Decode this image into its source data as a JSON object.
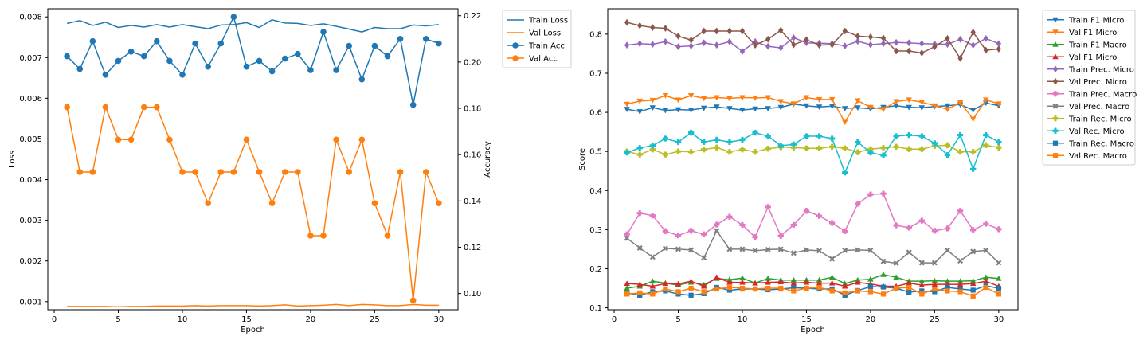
{
  "chart_data": [
    {
      "type": "line",
      "xlabel": "Epoch",
      "ylabel_left": "Loss",
      "ylabel_right": "Accuracy",
      "xlim": [
        -0.5,
        31.5
      ],
      "ylim_left": [
        0.0008,
        0.0082
      ],
      "ylim_right": [
        0.093,
        0.223
      ],
      "xticks": [
        0,
        5,
        10,
        15,
        20,
        25,
        30
      ],
      "yticks_left": [
        0.001,
        0.002,
        0.003,
        0.004,
        0.005,
        0.006,
        0.007,
        0.008
      ],
      "yticks_right": [
        0.1,
        0.12,
        0.14,
        0.16,
        0.18,
        0.2,
        0.22
      ],
      "x": [
        1,
        2,
        3,
        4,
        5,
        6,
        7,
        8,
        9,
        10,
        11,
        12,
        13,
        14,
        15,
        16,
        17,
        18,
        19,
        20,
        21,
        22,
        23,
        24,
        25,
        26,
        27,
        28,
        29,
        30
      ],
      "legend_position": "outside-right",
      "grid": false,
      "series": [
        {
          "name": "Train Loss",
          "axis": "left",
          "color": "#1f77b4",
          "marker": "none",
          "values": [
            0.00784,
            0.00791,
            0.00779,
            0.00787,
            0.00774,
            0.00779,
            0.00775,
            0.00781,
            0.00775,
            0.00781,
            0.00776,
            0.00771,
            0.0078,
            0.00781,
            0.00786,
            0.00774,
            0.00793,
            0.00785,
            0.00784,
            0.00779,
            0.00783,
            0.00777,
            0.0077,
            0.00763,
            0.00774,
            0.00771,
            0.00771,
            0.0078,
            0.00778,
            0.00781
          ]
        },
        {
          "name": "Val Loss",
          "axis": "left",
          "color": "#ff7f0e",
          "marker": "none",
          "values": [
            0.00088,
            0.00088,
            0.00088,
            0.00088,
            0.00087,
            0.00088,
            0.00088,
            0.00089,
            0.00089,
            0.00089,
            0.0009,
            0.00089,
            0.0009,
            0.0009,
            0.0009,
            0.00089,
            0.0009,
            0.00092,
            0.00089,
            0.0009,
            0.00091,
            0.00093,
            0.0009,
            0.00093,
            0.00092,
            0.0009,
            0.0009,
            0.00093,
            0.00091,
            0.00091
          ]
        },
        {
          "name": "Train Acc",
          "axis": "right",
          "color": "#1f77b4",
          "marker": "circle",
          "values": [
            0.2025,
            0.197,
            0.209,
            0.1945,
            0.2005,
            0.2045,
            0.2025,
            0.209,
            0.2005,
            0.1945,
            0.208,
            0.198,
            0.208,
            0.2195,
            0.198,
            0.2005,
            0.196,
            0.2015,
            0.2035,
            0.1965,
            0.213,
            0.1965,
            0.207,
            0.1925,
            0.207,
            0.2025,
            0.21,
            0.1815,
            0.21,
            0.208
          ]
        },
        {
          "name": "Val Acc",
          "axis": "right",
          "color": "#ff7f0e",
          "marker": "circle",
          "values": [
            0.1805,
            0.1525,
            0.1525,
            0.1805,
            0.1665,
            0.1665,
            0.1805,
            0.1805,
            0.1665,
            0.1525,
            0.1525,
            0.139,
            0.1525,
            0.1525,
            0.1665,
            0.1525,
            0.139,
            0.1525,
            0.1525,
            0.125,
            0.125,
            0.1665,
            0.1525,
            0.1665,
            0.139,
            0.125,
            0.1525,
            0.097,
            0.1525,
            0.139
          ]
        }
      ]
    },
    {
      "type": "line",
      "xlabel": "Epoch",
      "ylabel": "Score",
      "xlim": [
        -0.5,
        31.5
      ],
      "ylim": [
        0.095,
        0.865
      ],
      "xticks": [
        0,
        5,
        10,
        15,
        20,
        25,
        30
      ],
      "yticks": [
        0.1,
        0.2,
        0.3,
        0.4,
        0.5,
        0.6,
        0.7,
        0.8
      ],
      "x": [
        1,
        2,
        3,
        4,
        5,
        6,
        7,
        8,
        9,
        10,
        11,
        12,
        13,
        14,
        15,
        16,
        17,
        18,
        19,
        20,
        21,
        22,
        23,
        24,
        25,
        26,
        27,
        28,
        29,
        30
      ],
      "legend_position": "outside-right",
      "grid": false,
      "series": [
        {
          "name": "Train F1 Micro",
          "color": "#1f77b4",
          "marker": "tri-down",
          "values": [
            0.608,
            0.602,
            0.612,
            0.605,
            0.607,
            0.606,
            0.611,
            0.614,
            0.61,
            0.606,
            0.609,
            0.61,
            0.613,
            0.621,
            0.617,
            0.614,
            0.616,
            0.61,
            0.612,
            0.609,
            0.613,
            0.617,
            0.613,
            0.612,
            0.615,
            0.617,
            0.62,
            0.606,
            0.624,
            0.617
          ]
        },
        {
          "name": "Val F1 Micro",
          "color": "#ff7f0e",
          "marker": "tri-down",
          "values": [
            0.621,
            0.629,
            0.631,
            0.643,
            0.632,
            0.643,
            0.636,
            0.638,
            0.636,
            0.638,
            0.637,
            0.638,
            0.628,
            0.622,
            0.638,
            0.633,
            0.633,
            0.575,
            0.63,
            0.613,
            0.608,
            0.628,
            0.632,
            0.626,
            0.617,
            0.608,
            0.625,
            0.583,
            0.632,
            0.622
          ]
        },
        {
          "name": "Train F1 Macro",
          "color": "#2ca02c",
          "marker": "tri-up",
          "values": [
            0.15,
            0.155,
            0.168,
            0.163,
            0.158,
            0.165,
            0.159,
            0.175,
            0.172,
            0.176,
            0.163,
            0.175,
            0.171,
            0.171,
            0.171,
            0.171,
            0.178,
            0.162,
            0.171,
            0.173,
            0.185,
            0.178,
            0.168,
            0.168,
            0.169,
            0.168,
            0.168,
            0.169,
            0.178,
            0.175
          ]
        },
        {
          "name": "Val F1 Micro",
          "color": "#d62728",
          "marker": "tri-up",
          "values": [
            0.162,
            0.16,
            0.155,
            0.162,
            0.161,
            0.168,
            0.155,
            0.178,
            0.165,
            0.165,
            0.163,
            0.165,
            0.166,
            0.163,
            0.165,
            0.163,
            0.163,
            0.155,
            0.165,
            0.161,
            0.155,
            0.155,
            0.163,
            0.158,
            0.16,
            0.16,
            0.16,
            0.162,
            0.168,
            0.155
          ]
        },
        {
          "name": "Train Prec. Micro",
          "color": "#9467bd",
          "marker": "diamond",
          "values": [
            0.772,
            0.776,
            0.774,
            0.781,
            0.768,
            0.77,
            0.778,
            0.772,
            0.781,
            0.756,
            0.781,
            0.769,
            0.765,
            0.791,
            0.778,
            0.777,
            0.776,
            0.77,
            0.782,
            0.773,
            0.776,
            0.779,
            0.778,
            0.776,
            0.775,
            0.774,
            0.787,
            0.772,
            0.789,
            0.776
          ]
        },
        {
          "name": "Val Prec. Micro",
          "color": "#8c564b",
          "marker": "diamond",
          "values": [
            0.83,
            0.822,
            0.817,
            0.815,
            0.795,
            0.785,
            0.808,
            0.808,
            0.808,
            0.808,
            0.772,
            0.787,
            0.81,
            0.773,
            0.786,
            0.772,
            0.773,
            0.808,
            0.795,
            0.793,
            0.79,
            0.757,
            0.757,
            0.752,
            0.768,
            0.789,
            0.738,
            0.805,
            0.759,
            0.762
          ]
        },
        {
          "name": "Train Prec. Macro",
          "color": "#e377c2",
          "marker": "plus-filled",
          "values": [
            0.288,
            0.342,
            0.336,
            0.296,
            0.285,
            0.297,
            0.288,
            0.313,
            0.333,
            0.312,
            0.281,
            0.358,
            0.284,
            0.312,
            0.348,
            0.335,
            0.317,
            0.296,
            0.366,
            0.39,
            0.392,
            0.311,
            0.305,
            0.323,
            0.297,
            0.303,
            0.348,
            0.299,
            0.315,
            0.301
          ]
        },
        {
          "name": "Val Prec. Macro",
          "color": "#7f7f7f",
          "marker": "x-filled",
          "values": [
            0.278,
            0.253,
            0.23,
            0.252,
            0.25,
            0.248,
            0.228,
            0.297,
            0.25,
            0.25,
            0.246,
            0.249,
            0.25,
            0.24,
            0.248,
            0.246,
            0.225,
            0.247,
            0.248,
            0.247,
            0.219,
            0.214,
            0.242,
            0.215,
            0.215,
            0.247,
            0.22,
            0.244,
            0.247,
            0.215
          ]
        },
        {
          "name": "Train Rec. Micro",
          "color": "#bcbd22",
          "marker": "plus-filled",
          "values": [
            0.5,
            0.492,
            0.505,
            0.492,
            0.5,
            0.499,
            0.505,
            0.51,
            0.499,
            0.505,
            0.499,
            0.507,
            0.511,
            0.51,
            0.508,
            0.508,
            0.512,
            0.508,
            0.498,
            0.506,
            0.509,
            0.512,
            0.506,
            0.506,
            0.514,
            0.516,
            0.499,
            0.499,
            0.516,
            0.51
          ]
        },
        {
          "name": "Val Rec. Micro",
          "color": "#17becf",
          "marker": "plus-filled",
          "values": [
            0.497,
            0.509,
            0.515,
            0.533,
            0.524,
            0.548,
            0.524,
            0.53,
            0.524,
            0.53,
            0.548,
            0.539,
            0.515,
            0.518,
            0.539,
            0.539,
            0.533,
            0.446,
            0.524,
            0.497,
            0.49,
            0.539,
            0.542,
            0.539,
            0.521,
            0.491,
            0.542,
            0.455,
            0.542,
            0.524
          ]
        },
        {
          "name": "Train Rec. Macro",
          "color": "#1f77b4",
          "marker": "square",
          "values": [
            0.138,
            0.132,
            0.141,
            0.143,
            0.135,
            0.132,
            0.136,
            0.152,
            0.145,
            0.148,
            0.148,
            0.146,
            0.148,
            0.151,
            0.15,
            0.148,
            0.148,
            0.132,
            0.144,
            0.154,
            0.153,
            0.15,
            0.14,
            0.143,
            0.141,
            0.152,
            0.148,
            0.145,
            0.156,
            0.15
          ]
        },
        {
          "name": "Val Rec. Macro",
          "color": "#ff7f0e",
          "marker": "square",
          "values": [
            0.135,
            0.138,
            0.135,
            0.148,
            0.141,
            0.15,
            0.141,
            0.148,
            0.152,
            0.15,
            0.148,
            0.15,
            0.15,
            0.143,
            0.15,
            0.152,
            0.143,
            0.138,
            0.143,
            0.141,
            0.135,
            0.15,
            0.152,
            0.135,
            0.148,
            0.143,
            0.141,
            0.13,
            0.152,
            0.135
          ]
        }
      ]
    }
  ]
}
